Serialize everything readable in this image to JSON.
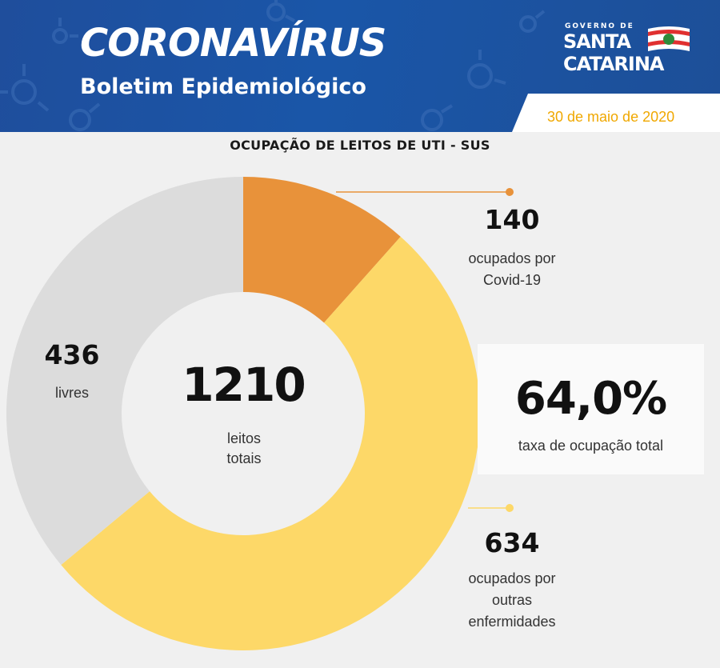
{
  "header": {
    "title": "CORONAVÍRUS",
    "subtitle": "Boletim Epidemiológico",
    "date": "30 de maio de 2020",
    "logo_text": [
      "GOVERNO DE",
      "SANTA",
      "CATARINA"
    ]
  },
  "colors": {
    "header_blue": "#1f4e9c",
    "covid": "#e8923a",
    "other": "#fdd868",
    "free": "#dcdcdc",
    "date": "#f0a800"
  },
  "chart_data": {
    "type": "pie",
    "title": "OCUPAÇÃO DE LEITOS DE UTI - SUS",
    "total": {
      "value": "1210",
      "label_line1": "leitos",
      "label_line2": "totais"
    },
    "slices": [
      {
        "name": "ocupados por Covid-19",
        "value": 140,
        "color": "#e8923a",
        "label_value": "140",
        "label_lines": [
          "ocupados por",
          "Covid-19"
        ]
      },
      {
        "name": "ocupados por outras enfermidades",
        "value": 634,
        "color": "#fdd868",
        "label_value": "634",
        "label_lines": [
          "ocupados por",
          "outras",
          "enfermidades"
        ]
      },
      {
        "name": "livres",
        "value": 436,
        "color": "#dcdcdc",
        "label_value": "436",
        "label_lines": [
          "livres"
        ]
      }
    ],
    "occupancy_rate": {
      "value": "64,0%",
      "label": "taxa de ocupação total"
    }
  }
}
